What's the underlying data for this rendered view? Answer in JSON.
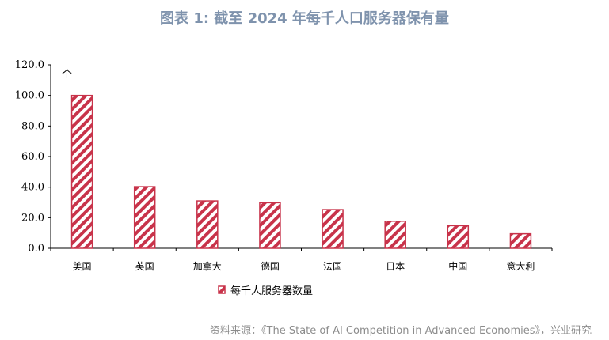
{
  "title": "图表 1: 截至 2024 年每千人口服务器保有量",
  "source": "资料来源：《The State of AI Competition in Advanced Economies》，兴业研究",
  "colors": {
    "bar": "#c8334a",
    "title": "#7f93ad"
  },
  "chart_data": {
    "type": "bar",
    "categories": [
      "美国",
      "英国",
      "加拿大",
      "德国",
      "法国",
      "日本",
      "中国",
      "意大利"
    ],
    "series": [
      {
        "name": "每千人服务器数量",
        "values": [
          100.0,
          40.3,
          31.0,
          29.8,
          25.3,
          17.7,
          14.8,
          9.5
        ]
      }
    ],
    "unit_label": "个",
    "ylim": [
      0,
      120
    ],
    "yticks": [
      "0.0",
      "20.0",
      "40.0",
      "60.0",
      "80.0",
      "100.0",
      "120.0"
    ],
    "grid": false,
    "legend_position": "bottom-left",
    "bar_pattern": "diagonal-stripes"
  }
}
